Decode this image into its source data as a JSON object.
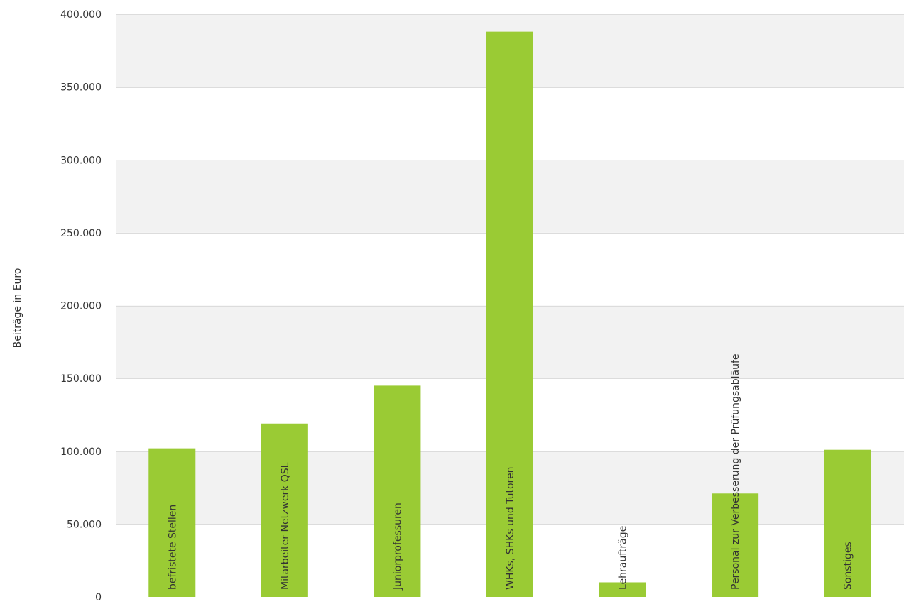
{
  "chart_data": {
    "type": "bar",
    "ylabel": "Beiträge in Euro",
    "ylim": [
      0,
      400000
    ],
    "yticks": [
      0,
      50000,
      100000,
      150000,
      200000,
      250000,
      300000,
      350000,
      400000
    ],
    "ytick_labels": [
      "0",
      "50.000",
      "100.000",
      "150.000",
      "200.000",
      "250.000",
      "300.000",
      "350.000",
      "400.000"
    ],
    "categories": [
      "befristete Stellen",
      "Mitarbeiter Netzwerk QSL",
      "Juniorprofessuren",
      "WHKs, SHKs und Tutoren",
      "Lehraufträge",
      "Personal zur Verbesserung der Prüfungsabläufe",
      "Sonstiges"
    ],
    "values": [
      102000,
      119000,
      145000,
      388000,
      10000,
      71000,
      101000
    ],
    "grid": true,
    "legend": "none"
  },
  "colors": {
    "bar": "#9acb34",
    "band": "#f2f2f2",
    "gridline": "#dcdcdc",
    "text": "#333333"
  }
}
